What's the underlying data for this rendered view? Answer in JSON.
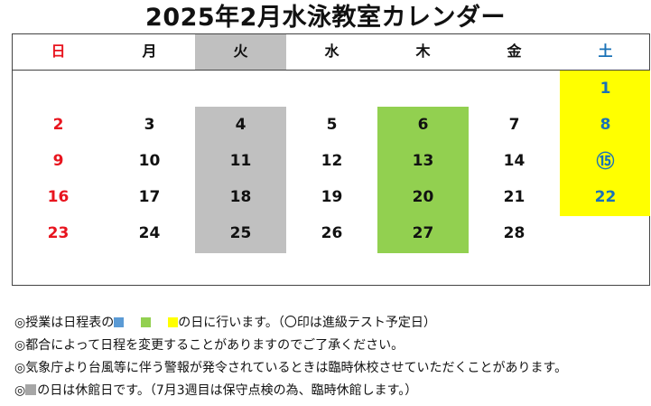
{
  "title": "2025年2月水泳教室カレンダー",
  "colors": {
    "sunday_text": "#e8141e",
    "saturday_text": "#1a72b7",
    "lesson_blue": "#5b9bd5",
    "lesson_green": "#92d050",
    "lesson_yellow": "#ffff00",
    "closed_gray": "#c0c0c0"
  },
  "weekdays": [
    "日",
    "月",
    "火",
    "水",
    "木",
    "金",
    "土"
  ],
  "weeks": [
    [
      "",
      "",
      "",
      "",
      "",
      "",
      "1"
    ],
    [
      "2",
      "3",
      "4",
      "5",
      "6",
      "7",
      "8"
    ],
    [
      "9",
      "10",
      "11",
      "12",
      "13",
      "14",
      "⑮"
    ],
    [
      "16",
      "17",
      "18",
      "19",
      "20",
      "21",
      "22"
    ],
    [
      "23",
      "24",
      "25",
      "26",
      "27",
      "28",
      ""
    ]
  ],
  "notes": [
    "◎授業は日程表の",
    "の日に行います。（〇印は進級テスト予定日）",
    "◎都合によって日程を変更することがありますのでご了承ください。",
    "◎気象庁より台風等に伴う警報が発令されているときは臨時休校させていただくことがあります。",
    "◎",
    "の日は休館日です。（7月3週目は保守点検の為、臨時休館します。）"
  ]
}
